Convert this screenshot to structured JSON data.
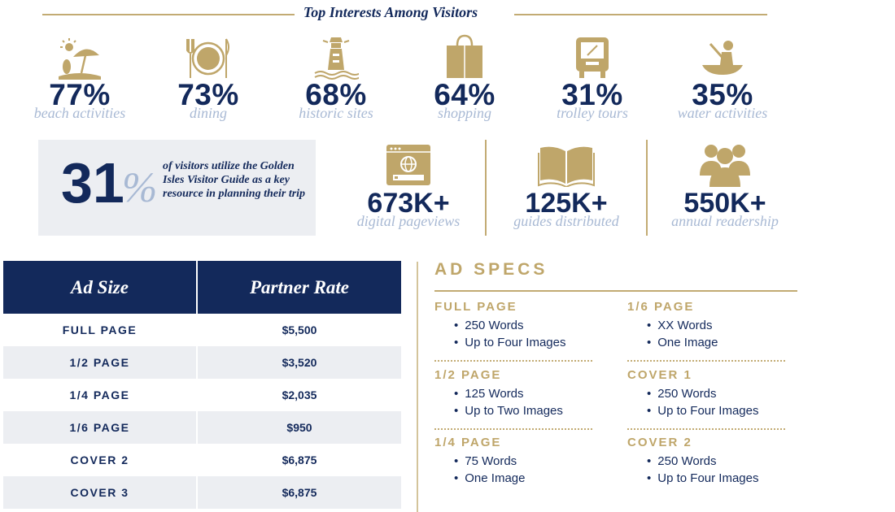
{
  "header": {
    "title": "Top Interests Among Visitors"
  },
  "interests": [
    {
      "icon": "beach-umbrella-icon",
      "percent": "77%",
      "label": "beach activities"
    },
    {
      "icon": "dining-plate-icon",
      "percent": "73%",
      "label": "dining"
    },
    {
      "icon": "lighthouse-icon",
      "percent": "68%",
      "label": "historic sites"
    },
    {
      "icon": "shopping-bag-icon",
      "percent": "64%",
      "label": "shopping"
    },
    {
      "icon": "trolley-icon",
      "percent": "31%",
      "label": "trolley tours"
    },
    {
      "icon": "kayak-icon",
      "percent": "35%",
      "label": "water activities"
    }
  ],
  "guide": {
    "number": "31",
    "percent_sign": "%",
    "text": "of visitors utilize the Golden Isles Visitor Guide as a key resource in planning their trip"
  },
  "stats": [
    {
      "icon": "web-browser-icon",
      "value": "673K+",
      "label": "digital pageviews"
    },
    {
      "icon": "open-book-icon",
      "value": "125K+",
      "label": "guides distributed"
    },
    {
      "icon": "people-group-icon",
      "value": "550K+",
      "label": "annual readership"
    }
  ],
  "rates": {
    "headers": [
      "Ad Size",
      "Partner Rate"
    ],
    "rows": [
      {
        "size": "FULL PAGE",
        "rate": "$5,500"
      },
      {
        "size": "1/2 PAGE",
        "rate": "$3,520"
      },
      {
        "size": "1/4 PAGE",
        "rate": "$2,035"
      },
      {
        "size": "1/6 PAGE",
        "rate": "$950"
      },
      {
        "size": "COVER 2",
        "rate": "$6,875"
      },
      {
        "size": "COVER 3",
        "rate": "$6,875"
      }
    ]
  },
  "specs": {
    "title": "AD SPECS",
    "items": [
      {
        "name": "FULL PAGE",
        "lines": [
          "250 Words",
          "Up to Four Images"
        ]
      },
      {
        "name": "1/2 PAGE",
        "lines": [
          "125 Words",
          "Up to Two Images"
        ]
      },
      {
        "name": "1/4 PAGE",
        "lines": [
          "75 Words",
          "One Image"
        ]
      },
      {
        "name": "1/6 PAGE",
        "lines": [
          "XX Words",
          "One Image"
        ]
      },
      {
        "name": "COVER 1",
        "lines": [
          "250 Words",
          "Up to Four Images"
        ]
      },
      {
        "name": "COVER 2",
        "lines": [
          "250 Words",
          "Up to Four Images"
        ]
      }
    ]
  },
  "colors": {
    "navy": "#13295b",
    "gold": "#bfa66a",
    "light_blue": "#a8b9d4",
    "panel_gray": "#eceef2"
  }
}
